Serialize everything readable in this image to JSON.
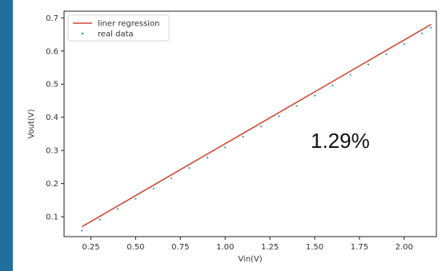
{
  "chart_data": {
    "type": "line",
    "xlabel": "Vin(V)",
    "ylabel": "Vout(V)",
    "xlim": [
      0.1,
      2.18
    ],
    "ylim": [
      0.04,
      0.72
    ],
    "x_ticks": [
      "0.25",
      "0.50",
      "0.75",
      "1.00",
      "1.25",
      "1.50",
      "1.75",
      "2.00"
    ],
    "x_tick_values": [
      0.25,
      0.5,
      0.75,
      1.0,
      1.25,
      1.5,
      1.75,
      2.0
    ],
    "y_ticks": [
      "0.1",
      "0.2",
      "0.3",
      "0.4",
      "0.5",
      "0.6",
      "0.7"
    ],
    "y_tick_values": [
      0.1,
      0.2,
      0.3,
      0.4,
      0.5,
      0.6,
      0.7
    ],
    "grid": false,
    "legend_position": "top-left",
    "series": [
      {
        "name": "liner regression",
        "style": "line",
        "color": "#d04a3a",
        "x": [
          0.2,
          2.15
        ],
        "y": [
          0.07,
          0.68
        ]
      },
      {
        "name": "real data",
        "style": "points",
        "color": "#4a8fc0",
        "x": [
          0.2,
          0.3,
          0.4,
          0.5,
          0.6,
          0.7,
          0.8,
          0.9,
          1.0,
          1.1,
          1.2,
          1.3,
          1.4,
          1.5,
          1.6,
          1.7,
          1.8,
          1.9,
          2.0,
          2.1,
          2.15
        ],
        "y": [
          0.063,
          0.096,
          0.128,
          0.159,
          0.19,
          0.221,
          0.252,
          0.283,
          0.314,
          0.346,
          0.377,
          0.408,
          0.439,
          0.47,
          0.501,
          0.533,
          0.564,
          0.595,
          0.626,
          0.658,
          0.675
        ]
      }
    ],
    "annotation": "1.29%"
  }
}
